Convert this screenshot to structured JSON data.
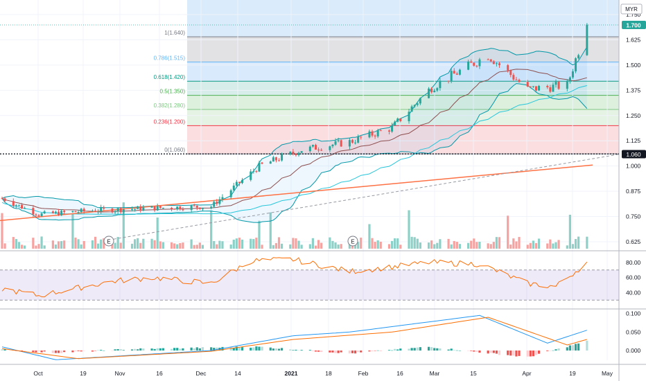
{
  "header": {
    "currency": "MYR"
  },
  "price_axis": {
    "ticks": [
      "1.750",
      "1.625",
      "1.500",
      "1.375",
      "1.250",
      "1.125",
      "1.000",
      "0.875",
      "0.750",
      "0.625"
    ],
    "last_price_label": "1.700",
    "marker_label": "1.060",
    "last_color": "#26a69a",
    "marker_color": "#131722"
  },
  "fib_levels": [
    {
      "label": "1(1.640)",
      "value": 1.64,
      "color": "#787b86"
    },
    {
      "label": "0.786(1.515)",
      "value": 1.515,
      "color": "#64b5f6"
    },
    {
      "label": "0.618(1.420)",
      "value": 1.42,
      "color": "#089981"
    },
    {
      "label": "0.5(1.350)",
      "value": 1.35,
      "color": "#4caf50"
    },
    {
      "label": "0.382(1.280)",
      "value": 1.28,
      "color": "#81c784"
    },
    {
      "label": "0.236(1.200)",
      "value": 1.2,
      "color": "#f23645"
    },
    {
      "label": "0(1.060)",
      "value": 1.06,
      "color": "#787b86"
    }
  ],
  "rsi_axis": {
    "ticks": [
      "80.00",
      "60.00",
      "40.00"
    ]
  },
  "macd_axis": {
    "ticks": [
      "0.100",
      "0.050",
      "0.000"
    ]
  },
  "time_axis": {
    "labels": [
      {
        "text": "Oct",
        "bold": false
      },
      {
        "text": "19",
        "bold": false
      },
      {
        "text": "Nov",
        "bold": false
      },
      {
        "text": "16",
        "bold": false
      },
      {
        "text": "Dec",
        "bold": false
      },
      {
        "text": "14",
        "bold": false
      },
      {
        "text": "2021",
        "bold": true
      },
      {
        "text": "18",
        "bold": false
      },
      {
        "text": "Feb",
        "bold": false
      },
      {
        "text": "16",
        "bold": false
      },
      {
        "text": "Mar",
        "bold": false
      },
      {
        "text": "15",
        "bold": false
      },
      {
        "text": "Apr",
        "bold": false
      },
      {
        "text": "19",
        "bold": false
      },
      {
        "text": "May",
        "bold": false
      }
    ]
  },
  "earnings_markers": [
    "E",
    "E"
  ],
  "colors": {
    "up": "#26a69a",
    "down": "#ef5350",
    "rsi": "#ff6d00",
    "macd": "#2196f3",
    "signal": "#ff6d00"
  },
  "chart_data": [
    {
      "type": "candlestick",
      "title": "",
      "y_range": [
        0.6,
        1.78
      ],
      "x_range": [
        "2020-10-01",
        "2021-04-28"
      ],
      "key_points": [
        {
          "date": "2020-10-01",
          "close": 0.84
        },
        {
          "date": "2020-10-14",
          "close": 0.76
        },
        {
          "date": "2020-11-02",
          "close": 0.78
        },
        {
          "date": "2020-11-30",
          "close": 0.795
        },
        {
          "date": "2020-12-14",
          "close": 0.8
        },
        {
          "date": "2020-12-31",
          "close": 1.0
        },
        {
          "date": "2021-01-15",
          "close": 1.08
        },
        {
          "date": "2021-02-01",
          "close": 1.12
        },
        {
          "date": "2021-02-16",
          "close": 1.19
        },
        {
          "date": "2021-03-02",
          "close": 1.39
        },
        {
          "date": "2021-03-22",
          "close": 1.55
        },
        {
          "date": "2021-04-05",
          "close": 1.38
        },
        {
          "date": "2021-04-19",
          "close": 1.4
        },
        {
          "date": "2021-04-26",
          "close": 1.7
        }
      ],
      "indicators": [
        "Bollinger Bands",
        "Moving Average",
        "Trend line",
        "Fibonacci retracement",
        "Volume"
      ]
    },
    {
      "type": "line",
      "title": "",
      "y_range": [
        22,
        90
      ],
      "guide_levels": [
        70,
        30
      ],
      "series": [
        {
          "key_points": [
            {
              "date": "2020-10-01",
              "value": 45
            },
            {
              "date": "2020-10-14",
              "value": 36
            },
            {
              "date": "2020-11-09",
              "value": 55
            },
            {
              "date": "2020-11-23",
              "value": 60
            },
            {
              "date": "2020-12-14",
              "value": 52
            },
            {
              "date": "2020-12-28",
              "value": 82
            },
            {
              "date": "2021-01-12",
              "value": 84
            },
            {
              "date": "2021-02-01",
              "value": 68
            },
            {
              "date": "2021-02-16",
              "value": 74
            },
            {
              "date": "2021-03-01",
              "value": 80
            },
            {
              "date": "2021-03-19",
              "value": 78
            },
            {
              "date": "2021-04-05",
              "value": 52
            },
            {
              "date": "2021-04-15",
              "value": 48
            },
            {
              "date": "2021-04-26",
              "value": 80
            }
          ]
        }
      ]
    },
    {
      "type": "line+bar",
      "title": "",
      "y_range": [
        -0.03,
        0.105
      ],
      "series": [
        {
          "kind": "histogram",
          "key_points": [
            {
              "date": "2020-10-01",
              "value": 0.002
            },
            {
              "date": "2020-10-20",
              "value": -0.006
            },
            {
              "date": "2020-11-16",
              "value": 0.004
            },
            {
              "date": "2020-12-31",
              "value": 0.01
            },
            {
              "date": "2021-02-01",
              "value": -0.008
            },
            {
              "date": "2021-03-01",
              "value": 0.01
            },
            {
              "date": "2021-04-05",
              "value": -0.018
            },
            {
              "date": "2021-04-26",
              "value": 0.025
            }
          ]
        },
        {
          "kind": "line",
          "key_points": [
            {
              "date": "2020-10-01",
              "value": 0.01
            },
            {
              "date": "2020-10-20",
              "value": -0.025
            },
            {
              "date": "2020-12-14",
              "value": 0.0
            },
            {
              "date": "2021-01-12",
              "value": 0.04
            },
            {
              "date": "2021-02-01",
              "value": 0.05
            },
            {
              "date": "2021-03-19",
              "value": 0.095
            },
            {
              "date": "2021-04-12",
              "value": 0.02
            },
            {
              "date": "2021-04-26",
              "value": 0.055
            }
          ]
        },
        {
          "kind": "line",
          "key_points": [
            {
              "date": "2020-10-01",
              "value": 0.005
            },
            {
              "date": "2020-10-28",
              "value": -0.022
            },
            {
              "date": "2020-12-14",
              "value": -0.002
            },
            {
              "date": "2021-01-12",
              "value": 0.03
            },
            {
              "date": "2021-02-16",
              "value": 0.05
            },
            {
              "date": "2021-03-22",
              "value": 0.09
            },
            {
              "date": "2021-04-19",
              "value": 0.015
            },
            {
              "date": "2021-04-26",
              "value": 0.03
            }
          ]
        }
      ]
    }
  ]
}
